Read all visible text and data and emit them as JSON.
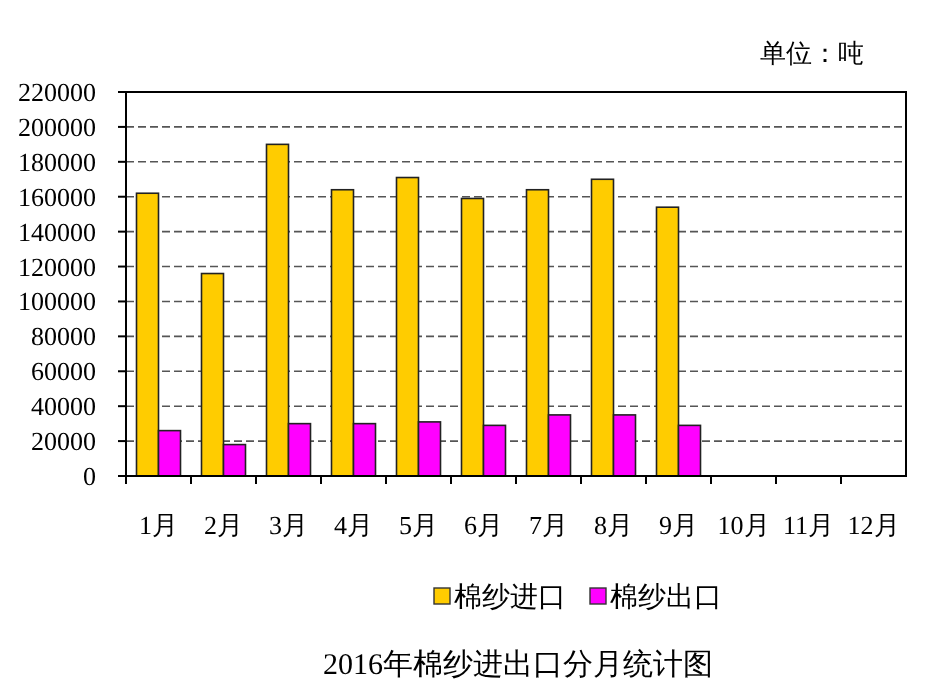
{
  "chart_data": {
    "type": "bar",
    "title": "2016年棉纱进出口分月统计图",
    "annotations": [
      "单位：吨"
    ],
    "categories": [
      "1月",
      "2月",
      "3月",
      "4月",
      "5月",
      "6月",
      "7月",
      "8月",
      "9月",
      "10月",
      "11月",
      "12月"
    ],
    "series": [
      {
        "name": "棉纱进口",
        "color": "#ffcc00",
        "values": [
          162000,
          116000,
          190000,
          164000,
          171000,
          159000,
          164000,
          170000,
          154000,
          null,
          null,
          null
        ]
      },
      {
        "name": "棉纱出口",
        "color": "#ff00ff",
        "values": [
          26000,
          18000,
          30000,
          30000,
          31000,
          29000,
          35000,
          35000,
          29000,
          null,
          null,
          null
        ]
      }
    ],
    "ylim": [
      0,
      220000
    ],
    "yticks": [
      0,
      20000,
      40000,
      60000,
      80000,
      100000,
      120000,
      140000,
      160000,
      180000,
      200000,
      220000
    ],
    "grid": "y",
    "legend": "bottom"
  }
}
